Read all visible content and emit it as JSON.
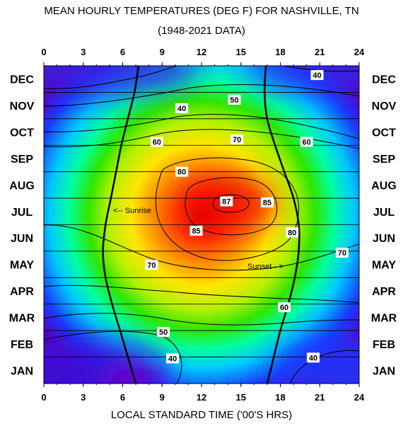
{
  "title_line1": "MEAN HOURLY TEMPERATURES (DEG F) FOR NASHVILLE, TN",
  "title_line2": "(1948-2021 DATA)",
  "xlabel": "LOCAL STANDARD TIME ('00'S HRS)",
  "chart_data": {
    "type": "heatmap",
    "title": "MEAN HOURLY TEMPERATURES (DEG F) FOR NASHVILLE, TN",
    "subtitle": "(1948-2021 DATA)",
    "xlabel": "LOCAL STANDARD TIME ('00'S HRS)",
    "ylabel": "",
    "x_ticks": [
      "0",
      "3",
      "6",
      "9",
      "12",
      "15",
      "18",
      "21",
      "24"
    ],
    "xlim": [
      0,
      24
    ],
    "months": [
      "JAN",
      "FEB",
      "MAR",
      "APR",
      "MAY",
      "JUN",
      "JUL",
      "AUG",
      "SEP",
      "OCT",
      "NOV",
      "DEC"
    ],
    "contour_levels": [
      40,
      50,
      60,
      70,
      80,
      85,
      87
    ],
    "contour_labels": [
      {
        "text": "40",
        "hour": 20.8,
        "month_pos": 11.65
      },
      {
        "text": "40",
        "hour": 10.5,
        "month_pos": 10.4
      },
      {
        "text": "50",
        "hour": 14.5,
        "month_pos": 10.72
      },
      {
        "text": "60",
        "hour": 8.6,
        "month_pos": 9.13
      },
      {
        "text": "70",
        "hour": 14.7,
        "month_pos": 9.22
      },
      {
        "text": "60",
        "hour": 20.0,
        "month_pos": 9.13
      },
      {
        "text": "80",
        "hour": 10.5,
        "month_pos": 8.0
      },
      {
        "text": "87",
        "hour": 13.9,
        "month_pos": 6.88
      },
      {
        "text": "85",
        "hour": 17.0,
        "month_pos": 6.84
      },
      {
        "text": "85",
        "hour": 11.6,
        "month_pos": 5.77
      },
      {
        "text": "80",
        "hour": 18.9,
        "month_pos": 5.71
      },
      {
        "text": "70",
        "hour": 8.2,
        "month_pos": 4.48
      },
      {
        "text": "70",
        "hour": 22.7,
        "month_pos": 4.94
      },
      {
        "text": "60",
        "hour": 18.3,
        "month_pos": 2.88
      },
      {
        "text": "50",
        "hour": 9.1,
        "month_pos": 1.95
      },
      {
        "text": "40",
        "hour": 9.8,
        "month_pos": 0.95
      },
      {
        "text": "40",
        "hour": 20.5,
        "month_pos": 0.98
      }
    ],
    "annotations": [
      "<-- Sunrise",
      "Sunset -->"
    ],
    "sunrise_hours": [
      7.0,
      6.4,
      5.8,
      5.2,
      4.7,
      4.5,
      4.7,
      5.1,
      5.5,
      5.9,
      6.4,
      6.9,
      7.2
    ],
    "sunset_hours": [
      17.0,
      17.5,
      18.0,
      18.6,
      19.1,
      19.4,
      19.4,
      19.0,
      18.3,
      17.6,
      17.0,
      16.8,
      16.9
    ],
    "colorscale": [
      "#5a00c8",
      "#1a3cff",
      "#00b4ff",
      "#00ffa0",
      "#2ee600",
      "#c8f000",
      "#ffe600",
      "#ff8800",
      "#ff3000",
      "#e00000"
    ]
  }
}
